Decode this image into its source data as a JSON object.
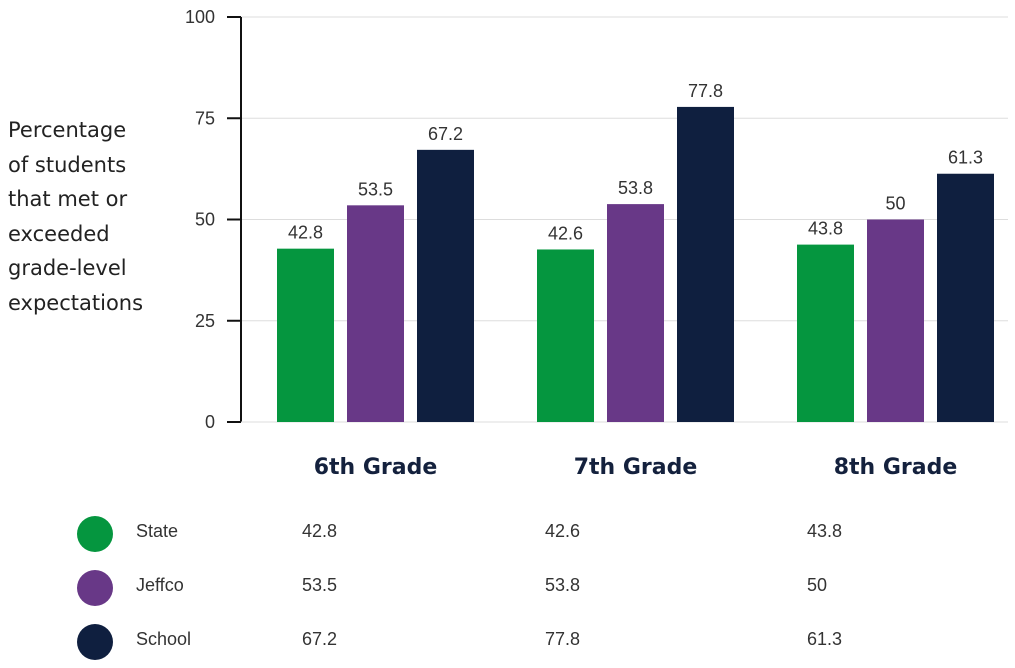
{
  "chart_data": {
    "type": "bar",
    "ylabel": "Percentage\nof students\nthat met or\nexceeded\ngrade-level\nexpectations",
    "xlabel": "",
    "ylim": [
      0,
      100
    ],
    "yticks": [
      0,
      25,
      50,
      75,
      100
    ],
    "grid": true,
    "categories": [
      "6th Grade",
      "7th Grade",
      "8th Grade"
    ],
    "series": [
      {
        "name": "State",
        "color": "#05963f",
        "values": [
          42.8,
          42.6,
          43.8
        ]
      },
      {
        "name": "Jeffco",
        "color": "#683887",
        "values": [
          53.5,
          53.8,
          50
        ]
      },
      {
        "name": "School",
        "color": "#0f1f3f",
        "values": [
          67.2,
          77.8,
          61.3
        ]
      }
    ],
    "legend": "bottom-table"
  }
}
